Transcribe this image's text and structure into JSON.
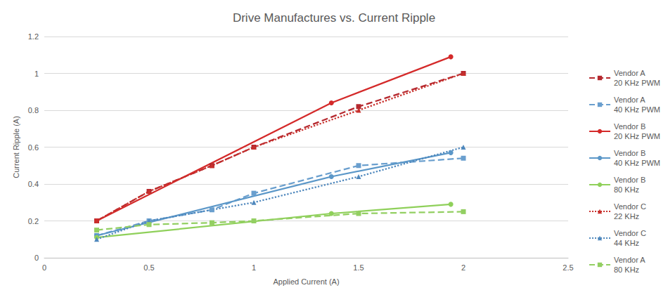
{
  "chart_data": {
    "type": "line",
    "title": "Drive Manufactures vs. Current Ripple",
    "x_label": "Applied Current (A)",
    "y_label": "Current Ripple (A)",
    "xlim": [
      0,
      2.5
    ],
    "xticks": [
      0,
      0.5,
      1,
      1.5,
      2,
      2.5
    ],
    "ylim": [
      0,
      1.2
    ],
    "yticks": [
      0,
      0.2,
      0.4,
      0.6,
      0.8,
      1,
      1.2
    ],
    "grid": true,
    "legend": "right",
    "series": [
      {
        "name": "Vendor A\n20 KHz PWM",
        "color": "#b5282e",
        "line_style": "dashed",
        "marker": "square",
        "x": [
          0.25,
          0.5,
          0.8,
          1,
          1.5,
          2
        ],
        "values": [
          0.2,
          0.36,
          0.5,
          0.6,
          0.82,
          1.0
        ]
      },
      {
        "name": "Vendor A\n40 KHz PWM",
        "color": "#6a9fce",
        "line_style": "dashed",
        "marker": "square",
        "x": [
          0.25,
          0.5,
          0.8,
          1,
          1.5,
          2
        ],
        "values": [
          0.12,
          0.2,
          0.26,
          0.35,
          0.5,
          0.54
        ]
      },
      {
        "name": "Vendor B\n20 KHz PWM",
        "color": "#d42a2a",
        "line_style": "solid",
        "marker": "circle",
        "x": [
          0.25,
          1.37,
          1.94
        ],
        "values": [
          0.2,
          0.84,
          1.09
        ]
      },
      {
        "name": "Vendor B\n40 KHz PWM",
        "color": "#5b97c8",
        "line_style": "solid",
        "marker": "circle",
        "x": [
          0.25,
          1.37,
          1.94
        ],
        "values": [
          0.12,
          0.44,
          0.57
        ]
      },
      {
        "name": "Vendor B\n80 KHz",
        "color": "#8fd05a",
        "line_style": "solid",
        "marker": "circle",
        "x": [
          0.25,
          1.37,
          1.94
        ],
        "values": [
          0.11,
          0.24,
          0.29
        ]
      },
      {
        "name": "Vendor C\n22 KHz",
        "color": "#c8302c",
        "line_style": "dotted",
        "marker": "triangle",
        "x": [
          0.25,
          0.5,
          0.8,
          1,
          1.5,
          2
        ],
        "values": [
          0.2,
          0.36,
          0.5,
          0.6,
          0.8,
          1.0
        ]
      },
      {
        "name": "Vendor C\n44 KHz",
        "color": "#4f88bd",
        "line_style": "dotted",
        "marker": "triangle",
        "x": [
          0.25,
          0.5,
          1,
          1.5,
          2
        ],
        "values": [
          0.1,
          0.2,
          0.3,
          0.44,
          0.6
        ]
      },
      {
        "name": "Vendor A\n80 KHz",
        "color": "#93cf62",
        "line_style": "dashed",
        "marker": "square",
        "x": [
          0.25,
          0.5,
          0.8,
          1,
          1.5,
          2
        ],
        "values": [
          0.15,
          0.18,
          0.19,
          0.2,
          0.24,
          0.25
        ]
      }
    ]
  }
}
